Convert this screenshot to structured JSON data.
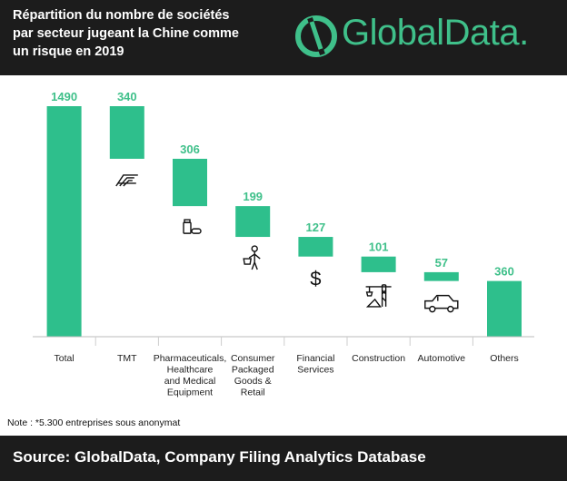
{
  "header": {
    "title_lines": [
      "Répartition du nombre de sociétés",
      "par secteur jugeant la Chine comme",
      "un risque en 2019"
    ],
    "logo_text": "GlobalData."
  },
  "note": "Note : *5.300 entreprises sous anonymat",
  "footer": {
    "source": "Source: GlobalData, Company Filing Analytics Database"
  },
  "colors": {
    "bar": "#2ebf8c",
    "value_label": "#3fc08a",
    "header_bg": "#1c1c1c"
  },
  "chart_data": {
    "type": "bar",
    "subtype": "waterfall",
    "categories": [
      [
        "Total"
      ],
      [
        "TMT"
      ],
      [
        "Pharmaceuticals,",
        "Healthcare",
        "and Medical",
        "Equipment"
      ],
      [
        "Consumer",
        "Packaged",
        "Goods &",
        "Retail"
      ],
      [
        "Financial",
        "Services"
      ],
      [
        "Construction"
      ],
      [
        "Automotive"
      ],
      [
        "Others"
      ]
    ],
    "values": [
      1490,
      340,
      306,
      199,
      127,
      101,
      57,
      360
    ],
    "value_labels": [
      "1490",
      "340",
      "306",
      "199",
      "127",
      "101",
      "57",
      "360"
    ],
    "icons": [
      "",
      "tmt-icon",
      "pill-bottle-icon",
      "shopper-icon",
      "dollar-icon",
      "crane-icon",
      "car-icon",
      ""
    ],
    "ylim": [
      0,
      1490
    ],
    "grid": false,
    "legend": "none"
  }
}
